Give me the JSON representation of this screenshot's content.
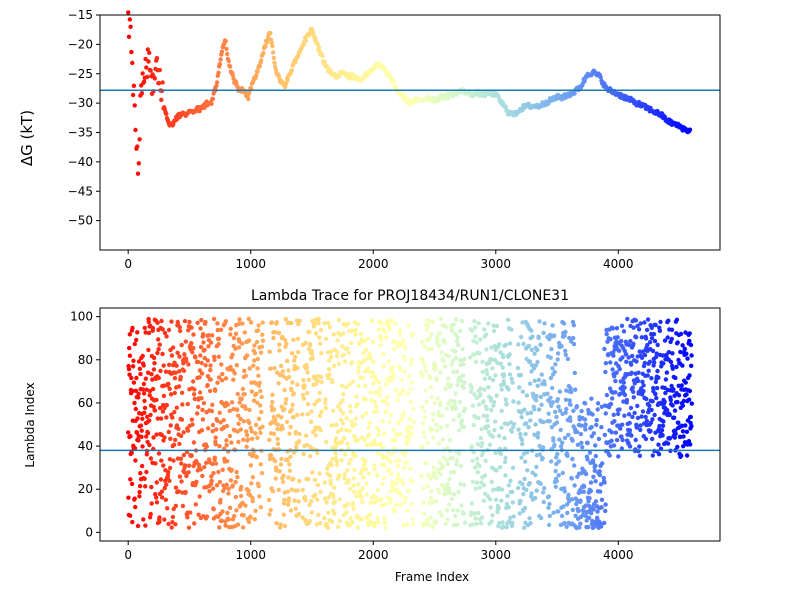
{
  "chart_data": [
    {
      "type": "scatter",
      "title": "",
      "xlabel": "",
      "ylabel": "ΔG (kT)",
      "xlim": [
        -230,
        4830
      ],
      "ylim": [
        -55,
        -15
      ],
      "xticks": [
        0,
        1000,
        2000,
        3000,
        4000
      ],
      "yticks": [
        -15,
        -20,
        -25,
        -30,
        -35,
        -40,
        -45,
        -50
      ],
      "hline": -27.8,
      "grid": false,
      "colormap": "rainbow (red → violet with frame index)",
      "trace": [
        [
          0,
          -15
        ],
        [
          20,
          -20
        ],
        [
          40,
          -27
        ],
        [
          60,
          -35
        ],
        [
          80,
          -42
        ],
        [
          100,
          -30
        ],
        [
          130,
          -25
        ],
        [
          160,
          -22
        ],
        [
          200,
          -26
        ],
        [
          240,
          -23
        ],
        [
          270,
          -27
        ],
        [
          300,
          -31
        ],
        [
          340,
          -34
        ],
        [
          380,
          -33
        ],
        [
          420,
          -32
        ],
        [
          470,
          -32
        ],
        [
          520,
          -31.5
        ],
        [
          560,
          -31
        ],
        [
          600,
          -31
        ],
        [
          640,
          -30
        ],
        [
          680,
          -30
        ],
        [
          720,
          -27
        ],
        [
          760,
          -22
        ],
        [
          790,
          -19
        ],
        [
          820,
          -23
        ],
        [
          860,
          -26
        ],
        [
          900,
          -27.5
        ],
        [
          940,
          -28
        ],
        [
          980,
          -29
        ],
        [
          1010,
          -27
        ],
        [
          1040,
          -25.5
        ],
        [
          1080,
          -23
        ],
        [
          1120,
          -20
        ],
        [
          1160,
          -18
        ],
        [
          1200,
          -24
        ],
        [
          1240,
          -26
        ],
        [
          1280,
          -27
        ],
        [
          1320,
          -25
        ],
        [
          1360,
          -23
        ],
        [
          1400,
          -21
        ],
        [
          1450,
          -19
        ],
        [
          1500,
          -17.5
        ],
        [
          1540,
          -20
        ],
        [
          1580,
          -22
        ],
        [
          1620,
          -24
        ],
        [
          1660,
          -25
        ],
        [
          1700,
          -25.5
        ],
        [
          1750,
          -24.5
        ],
        [
          1800,
          -25.5
        ],
        [
          1850,
          -25.5
        ],
        [
          1900,
          -26
        ],
        [
          1950,
          -25
        ],
        [
          2000,
          -24
        ],
        [
          2050,
          -23.5
        ],
        [
          2100,
          -24.5
        ],
        [
          2150,
          -26
        ],
        [
          2200,
          -28
        ],
        [
          2250,
          -29
        ],
        [
          2300,
          -30
        ],
        [
          2350,
          -29.5
        ],
        [
          2400,
          -29.5
        ],
        [
          2450,
          -29
        ],
        [
          2500,
          -29.5
        ],
        [
          2550,
          -29
        ],
        [
          2600,
          -28.8
        ],
        [
          2650,
          -28.5
        ],
        [
          2700,
          -28
        ],
        [
          2750,
          -28
        ],
        [
          2800,
          -28.5
        ],
        [
          2850,
          -28.3
        ],
        [
          2900,
          -28.5
        ],
        [
          2950,
          -28.3
        ],
        [
          3000,
          -28.5
        ],
        [
          3050,
          -30
        ],
        [
          3100,
          -31.5
        ],
        [
          3150,
          -32
        ],
        [
          3200,
          -31
        ],
        [
          3250,
          -30.5
        ],
        [
          3300,
          -30.5
        ],
        [
          3350,
          -30.5
        ],
        [
          3400,
          -30
        ],
        [
          3450,
          -29.5
        ],
        [
          3500,
          -29
        ],
        [
          3550,
          -29
        ],
        [
          3600,
          -28.5
        ],
        [
          3650,
          -28
        ],
        [
          3700,
          -27
        ],
        [
          3750,
          -25
        ],
        [
          3800,
          -24.8
        ],
        [
          3850,
          -25.5
        ],
        [
          3900,
          -27.5
        ],
        [
          3950,
          -28
        ],
        [
          4000,
          -28.5
        ],
        [
          4050,
          -29
        ],
        [
          4100,
          -29.5
        ],
        [
          4150,
          -30
        ],
        [
          4200,
          -30.5
        ],
        [
          4250,
          -31
        ],
        [
          4300,
          -31.5
        ],
        [
          4350,
          -32
        ],
        [
          4400,
          -33
        ],
        [
          4450,
          -33.5
        ],
        [
          4500,
          -34
        ],
        [
          4550,
          -34.5
        ],
        [
          4590,
          -34.8
        ]
      ]
    },
    {
      "type": "scatter",
      "title": "Lambda Trace for PROJ18434/RUN1/CLONE31",
      "xlabel": "Frame Index",
      "ylabel": "Lambda Index",
      "xlim": [
        -230,
        4830
      ],
      "ylim": [
        -4,
        104
      ],
      "xticks": [
        0,
        1000,
        2000,
        3000,
        4000
      ],
      "yticks": [
        0,
        20,
        40,
        60,
        80,
        100
      ],
      "hline": 38,
      "grid": false,
      "colormap": "rainbow (red → violet with frame index)",
      "frame_max": 4600,
      "lambda_range": [
        2,
        99
      ]
    }
  ]
}
